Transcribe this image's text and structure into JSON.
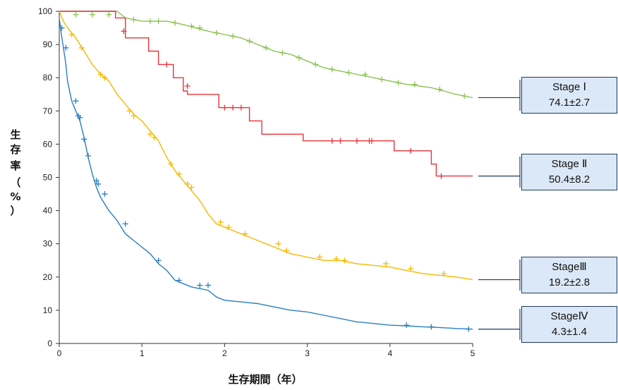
{
  "chart_data": {
    "type": "line",
    "title": "",
    "xlabel": "生存期間（年）",
    "ylabel": [
      "生",
      "存",
      "率",
      "（",
      "%",
      "）"
    ],
    "xlim": [
      0,
      5
    ],
    "ylim": [
      0,
      100
    ],
    "x_ticks": [
      "0",
      "1",
      "2",
      "3",
      "4",
      "5"
    ],
    "y_ticks": [
      "0",
      "10",
      "20",
      "30",
      "40",
      "50",
      "60",
      "70",
      "80",
      "90",
      "100"
    ],
    "grid": false,
    "series": [
      {
        "name": "Stage Ⅰ",
        "label_lines": [
          "Stage Ⅰ",
          "74.1±2.7"
        ],
        "color": "#8cc152",
        "step": false,
        "points": [
          [
            0,
            100
          ],
          [
            0.7,
            100
          ],
          [
            0.8,
            98
          ],
          [
            1.0,
            97
          ],
          [
            1.3,
            97
          ],
          [
            1.5,
            96
          ],
          [
            1.8,
            94
          ],
          [
            2.0,
            93
          ],
          [
            2.2,
            92
          ],
          [
            2.4,
            90
          ],
          [
            2.6,
            88
          ],
          [
            2.8,
            87
          ],
          [
            3.0,
            85
          ],
          [
            3.2,
            83
          ],
          [
            3.4,
            82
          ],
          [
            3.6,
            81
          ],
          [
            3.8,
            80
          ],
          [
            4.0,
            79
          ],
          [
            4.2,
            78
          ],
          [
            4.5,
            77
          ],
          [
            4.8,
            75
          ],
          [
            5.0,
            74
          ]
        ],
        "censors": [
          [
            0.2,
            99
          ],
          [
            0.4,
            99
          ],
          [
            0.6,
            99
          ],
          [
            0.9,
            97.5
          ],
          [
            1.1,
            97
          ],
          [
            1.2,
            97
          ],
          [
            1.4,
            96.5
          ],
          [
            1.6,
            95.5
          ],
          [
            1.7,
            95
          ],
          [
            1.9,
            93.5
          ],
          [
            2.1,
            92.5
          ],
          [
            2.3,
            91
          ],
          [
            2.5,
            89
          ],
          [
            2.7,
            87.5
          ],
          [
            2.9,
            86
          ],
          [
            3.1,
            84
          ],
          [
            3.3,
            82.5
          ],
          [
            3.5,
            81.5
          ],
          [
            3.7,
            81
          ],
          [
            3.9,
            79.5
          ],
          [
            4.1,
            78.5
          ],
          [
            4.3,
            78
          ],
          [
            4.6,
            76.5
          ],
          [
            4.9,
            74.5
          ]
        ]
      },
      {
        "name": "Stage Ⅱ",
        "label_lines": [
          "Stage Ⅱ",
          "50.4±8.2"
        ],
        "color": "#e8333a",
        "step": true,
        "points": [
          [
            0,
            100
          ],
          [
            0.68,
            100
          ],
          [
            0.68,
            98
          ],
          [
            0.8,
            98
          ],
          [
            0.8,
            92
          ],
          [
            1.08,
            92
          ],
          [
            1.08,
            88
          ],
          [
            1.2,
            88
          ],
          [
            1.2,
            84
          ],
          [
            1.38,
            84
          ],
          [
            1.38,
            80
          ],
          [
            1.5,
            80
          ],
          [
            1.5,
            76
          ],
          [
            1.55,
            76
          ],
          [
            1.55,
            75
          ],
          [
            1.93,
            75
          ],
          [
            1.93,
            71
          ],
          [
            2.3,
            71
          ],
          [
            2.3,
            67
          ],
          [
            2.45,
            67
          ],
          [
            2.45,
            63
          ],
          [
            2.95,
            63
          ],
          [
            2.95,
            61
          ],
          [
            4.05,
            61
          ],
          [
            4.05,
            58
          ],
          [
            4.5,
            58
          ],
          [
            4.5,
            54
          ],
          [
            4.56,
            54
          ],
          [
            4.56,
            50.4
          ],
          [
            5.0,
            50.4
          ]
        ],
        "censors": [
          [
            0.78,
            94
          ],
          [
            1.3,
            84
          ],
          [
            1.55,
            77.5
          ],
          [
            2.0,
            71
          ],
          [
            2.1,
            71
          ],
          [
            2.2,
            71
          ],
          [
            3.3,
            61
          ],
          [
            3.4,
            61
          ],
          [
            3.6,
            61
          ],
          [
            3.75,
            61
          ],
          [
            3.78,
            61
          ],
          [
            4.25,
            58
          ],
          [
            4.62,
            50.4
          ]
        ]
      },
      {
        "name": "StageⅢ",
        "label_lines": [
          "StageⅢ",
          "19.2±2.8"
        ],
        "color": "#f5b800",
        "step": false,
        "points": [
          [
            0,
            100
          ],
          [
            0.05,
            97
          ],
          [
            0.1,
            95
          ],
          [
            0.2,
            92
          ],
          [
            0.3,
            88
          ],
          [
            0.4,
            84
          ],
          [
            0.5,
            81
          ],
          [
            0.6,
            79
          ],
          [
            0.7,
            75
          ],
          [
            0.8,
            72
          ],
          [
            0.9,
            69
          ],
          [
            1.0,
            67
          ],
          [
            1.1,
            64
          ],
          [
            1.2,
            61
          ],
          [
            1.3,
            56
          ],
          [
            1.4,
            52
          ],
          [
            1.5,
            49
          ],
          [
            1.6,
            46
          ],
          [
            1.7,
            43
          ],
          [
            1.8,
            39
          ],
          [
            1.9,
            36
          ],
          [
            2.0,
            35
          ],
          [
            2.2,
            33
          ],
          [
            2.4,
            31
          ],
          [
            2.6,
            29
          ],
          [
            2.8,
            27
          ],
          [
            3.0,
            26
          ],
          [
            3.2,
            25
          ],
          [
            3.4,
            25
          ],
          [
            3.6,
            24
          ],
          [
            3.8,
            23.5
          ],
          [
            4.0,
            23
          ],
          [
            4.2,
            22
          ],
          [
            4.4,
            21
          ],
          [
            4.6,
            20.5
          ],
          [
            4.8,
            20
          ],
          [
            5.0,
            19.2
          ]
        ],
        "censors": [
          [
            0.15,
            93
          ],
          [
            0.27,
            89
          ],
          [
            0.5,
            81
          ],
          [
            0.55,
            80
          ],
          [
            0.85,
            70
          ],
          [
            0.9,
            68.5
          ],
          [
            1.1,
            63
          ],
          [
            1.15,
            62
          ],
          [
            1.35,
            54
          ],
          [
            1.45,
            51
          ],
          [
            1.55,
            48
          ],
          [
            1.6,
            47
          ],
          [
            1.95,
            36.5
          ],
          [
            2.05,
            35
          ],
          [
            2.25,
            33
          ],
          [
            2.65,
            30
          ],
          [
            2.75,
            28
          ],
          [
            3.15,
            26
          ],
          [
            3.35,
            25.5
          ],
          [
            3.45,
            25
          ],
          [
            3.95,
            24
          ],
          [
            4.25,
            22.5
          ],
          [
            4.65,
            21
          ]
        ]
      },
      {
        "name": "StageⅣ",
        "label_lines": [
          "StageⅣ",
          "4.3±1.4"
        ],
        "color": "#2a7fc1",
        "step": false,
        "points": [
          [
            0,
            98
          ],
          [
            0.02,
            94
          ],
          [
            0.05,
            89
          ],
          [
            0.08,
            84
          ],
          [
            0.1,
            79
          ],
          [
            0.15,
            73
          ],
          [
            0.2,
            70
          ],
          [
            0.25,
            67
          ],
          [
            0.3,
            62
          ],
          [
            0.35,
            56
          ],
          [
            0.4,
            51
          ],
          [
            0.45,
            47
          ],
          [
            0.5,
            44
          ],
          [
            0.6,
            40
          ],
          [
            0.7,
            37
          ],
          [
            0.8,
            33
          ],
          [
            0.9,
            31
          ],
          [
            1.0,
            29
          ],
          [
            1.1,
            27
          ],
          [
            1.2,
            24
          ],
          [
            1.3,
            22
          ],
          [
            1.4,
            19
          ],
          [
            1.5,
            18
          ],
          [
            1.6,
            17
          ],
          [
            1.8,
            16
          ],
          [
            1.9,
            14
          ],
          [
            2.0,
            13
          ],
          [
            2.2,
            12.5
          ],
          [
            2.4,
            12
          ],
          [
            2.6,
            11
          ],
          [
            2.8,
            10
          ],
          [
            3.0,
            9.5
          ],
          [
            3.2,
            8.5
          ],
          [
            3.4,
            7.5
          ],
          [
            3.6,
            6.5
          ],
          [
            3.8,
            6
          ],
          [
            4.0,
            5.5
          ],
          [
            4.2,
            5.3
          ],
          [
            4.4,
            5
          ],
          [
            4.6,
            4.8
          ],
          [
            4.8,
            4.5
          ],
          [
            5.0,
            4.3
          ]
        ],
        "censors": [
          [
            0.03,
            95
          ],
          [
            0.08,
            89
          ],
          [
            0.2,
            73
          ],
          [
            0.23,
            68.5
          ],
          [
            0.25,
            68
          ],
          [
            0.3,
            61.5
          ],
          [
            0.35,
            56.5
          ],
          [
            0.45,
            49
          ],
          [
            0.47,
            48
          ],
          [
            0.55,
            45
          ],
          [
            0.8,
            36
          ],
          [
            1.2,
            25
          ],
          [
            1.45,
            19
          ],
          [
            1.7,
            17.5
          ],
          [
            1.8,
            17.5
          ],
          [
            4.2,
            5.5
          ],
          [
            4.5,
            5
          ],
          [
            4.95,
            4.3
          ]
        ]
      }
    ]
  }
}
